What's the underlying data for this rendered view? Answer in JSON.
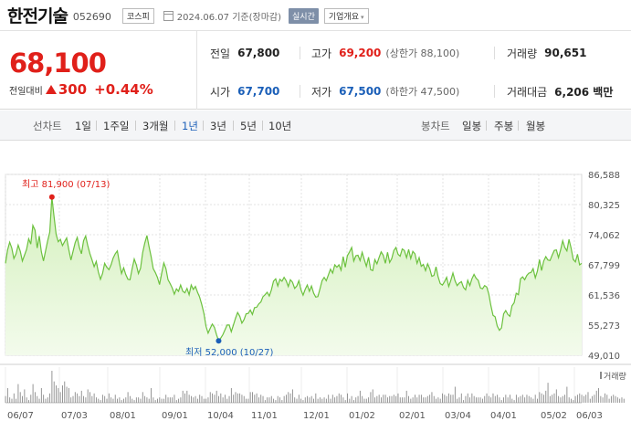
{
  "header": {
    "name": "한전기술",
    "code": "052690",
    "market": "코스피",
    "date": "2024.06.07 기준(장마감)",
    "realtime": "실시간",
    "company_info": "기업개요"
  },
  "quote": {
    "price": "68,100",
    "diff_label": "전일대비",
    "diff": "300",
    "diff_pct": "+0.44%",
    "prev_label": "전일",
    "prev": "67,800",
    "high_label": "고가",
    "high": "69,200",
    "upper_limit": "(상한가 88,100)",
    "volume_label": "거래량",
    "volume": "90,651",
    "open_label": "시가",
    "open": "67,700",
    "low_label": "저가",
    "low": "67,500",
    "lower_limit": "(하한가 47,500)",
    "amount_label": "거래대금",
    "amount": "6,206 백만"
  },
  "periods": {
    "line_label": "선차트",
    "items": [
      "1일",
      "1주일",
      "3개월",
      "1년",
      "3년",
      "5년",
      "10년"
    ],
    "active": "1년",
    "candle_label": "봉차트",
    "candle_items": [
      "일봉",
      "주봉",
      "월봉"
    ]
  },
  "colors": {
    "up": "#e0201a",
    "down": "#1b5fb8",
    "line": "#6cc13e",
    "fill_top": "#d4f0bd",
    "fill_bottom": "#f3fbec"
  },
  "chart_data": {
    "type": "area",
    "y_ticks": [
      "86,588",
      "80,325",
      "74,062",
      "67,799",
      "61,536",
      "55,273",
      "49,010"
    ],
    "ylim": [
      49010,
      86588
    ],
    "x_ticks": [
      "06/07",
      "07/03",
      "08/01",
      "09/01",
      "10/04",
      "11/01",
      "12/01",
      "01/02",
      "02/01",
      "03/04",
      "04/01",
      "05/02",
      "06/03"
    ],
    "max_annotation": "최고 81,900 (07/13)",
    "min_annotation": "최저 52,000 (10/27)",
    "max_value": 81900,
    "min_value": 52000,
    "volume_label": "거래량",
    "price_series": [
      68100,
      70900,
      72500,
      71300,
      69100,
      70100,
      71900,
      70600,
      68600,
      69800,
      71000,
      73200,
      72100,
      76000,
      75000,
      71300,
      73800,
      70500,
      68600,
      70700,
      72800,
      74600,
      81900,
      77800,
      74100,
      72600,
      73100,
      71800,
      72600,
      73400,
      71000,
      68800,
      70600,
      72400,
      73500,
      71400,
      70100,
      72800,
      73800,
      71800,
      70100,
      68800,
      67400,
      68500,
      66300,
      64800,
      66000,
      68100,
      67300,
      66800,
      67800,
      69200,
      70100,
      70700,
      68200,
      66000,
      67200,
      65800,
      64800,
      64700,
      67000,
      69000,
      67800,
      66000,
      67100,
      70300,
      72300,
      73900,
      71600,
      69500,
      67000,
      66200,
      65200,
      63700,
      66000,
      68200,
      67000,
      64700,
      63900,
      63000,
      61700,
      62800,
      62300,
      63600,
      62300,
      62000,
      62900,
      61600,
      63600,
      62700,
      63300,
      62100,
      61100,
      59500,
      57700,
      55000,
      53600,
      54600,
      55500,
      54800,
      53300,
      52000,
      52600,
      53300,
      54300,
      55300,
      55300,
      53900,
      55300,
      56700,
      57900,
      57100,
      55700,
      56400,
      57600,
      57700,
      58400,
      57500,
      58900,
      59000,
      59700,
      60100,
      61200,
      61600,
      62100,
      61300,
      62600,
      64400,
      64900,
      63400,
      64800,
      64400,
      65200,
      64500,
      63300,
      64700,
      64200,
      62900,
      63400,
      64500,
      62600,
      61500,
      62700,
      63600,
      62300,
      63400,
      61900,
      61100,
      61200,
      62800,
      64500,
      65200,
      64500,
      65700,
      66900,
      66100,
      67800,
      67300,
      67800,
      66700,
      69500,
      67300,
      69700,
      70500,
      71400,
      68600,
      69700,
      69800,
      68700,
      70400,
      68900,
      67500,
      69400,
      66800,
      66600,
      68900,
      68000,
      69300,
      70500,
      69800,
      68100,
      70400,
      68300,
      69100,
      70800,
      71400,
      70000,
      69600,
      71100,
      70800,
      69300,
      71000,
      69100,
      70600,
      70100,
      68100,
      69300,
      67500,
      67900,
      66600,
      68000,
      67000,
      65400,
      65600,
      67400,
      65300,
      63900,
      63600,
      64300,
      65200,
      63300,
      64600,
      66100,
      64500,
      63500,
      64000,
      64300,
      63100,
      62600,
      64600,
      63500,
      64900,
      65800,
      65000,
      64600,
      63000,
      62800,
      63500,
      63200,
      61700,
      59300,
      57300,
      57000,
      55100,
      54200,
      54700,
      57600,
      58300,
      57500,
      57100,
      59300,
      59900,
      61900,
      61600,
      64900,
      65300,
      64700,
      65600,
      66100,
      66200,
      67000,
      65100,
      66500,
      68900,
      66600,
      68600,
      69500,
      68800,
      68700,
      69800,
      70800,
      70900,
      69300,
      70900,
      72800,
      71400,
      70700,
      73100,
      71300,
      68900,
      68400,
      70000,
      67800,
      68100
    ],
    "volume_series": [
      5,
      11,
      4,
      3,
      7,
      3,
      14,
      8,
      5,
      10,
      4,
      2,
      6,
      14,
      8,
      5,
      3,
      11,
      6,
      3,
      4,
      7,
      24,
      16,
      13,
      11,
      8,
      13,
      16,
      12,
      11,
      4,
      5,
      8,
      7,
      5,
      9,
      5,
      4,
      10,
      8,
      5,
      7,
      4,
      3,
      2,
      6,
      5,
      3,
      7,
      4,
      3,
      6,
      3,
      4,
      2,
      3,
      4,
      8,
      5,
      3,
      2,
      4,
      4,
      3,
      8,
      5,
      4,
      3,
      11,
      4,
      2,
      3,
      4,
      3,
      3,
      6,
      4,
      4,
      4,
      6,
      2,
      3,
      4,
      9,
      7,
      9,
      6,
      5,
      4,
      5,
      3,
      6,
      5,
      3,
      3,
      4,
      8,
      7,
      6,
      9,
      5,
      7,
      4,
      6,
      3,
      5,
      11,
      6,
      8,
      7,
      7,
      6,
      5,
      3,
      3,
      8,
      8,
      6,
      7,
      4,
      6,
      5,
      2,
      4,
      4,
      5,
      3,
      2,
      5,
      4,
      2,
      5,
      6,
      8,
      7,
      10,
      4,
      3,
      6,
      3,
      2,
      4,
      5,
      4,
      5,
      3,
      7,
      3,
      4,
      3,
      4,
      3,
      6,
      3,
      6,
      4,
      5,
      7,
      6,
      4,
      2,
      7,
      3,
      5,
      2,
      4,
      5,
      9,
      5,
      3,
      3,
      4,
      8,
      10,
      4,
      5,
      6,
      4,
      6,
      6,
      4,
      5,
      5,
      6,
      5,
      7,
      4,
      4,
      4,
      9,
      5,
      3,
      4,
      6,
      4,
      6,
      6,
      4,
      4,
      5,
      6,
      8,
      5,
      3,
      4,
      3,
      7,
      6,
      5,
      7,
      6,
      6,
      12,
      3,
      4,
      7,
      2,
      5,
      7,
      4,
      7,
      5,
      4,
      4,
      4,
      3,
      5,
      7,
      5,
      4,
      7,
      5,
      6,
      4,
      2,
      4,
      6,
      4,
      6,
      3,
      2,
      6,
      4,
      5,
      6,
      4,
      6,
      5,
      4,
      3,
      6,
      3,
      8,
      7,
      6,
      9,
      15,
      5,
      6,
      7,
      10,
      5,
      4,
      5,
      6,
      12,
      4,
      3,
      2,
      5,
      6,
      7,
      6,
      5,
      6,
      8,
      3,
      5,
      6,
      9,
      11,
      5,
      4,
      7,
      6,
      3,
      5,
      6,
      5,
      4,
      3,
      4,
      3
    ]
  }
}
